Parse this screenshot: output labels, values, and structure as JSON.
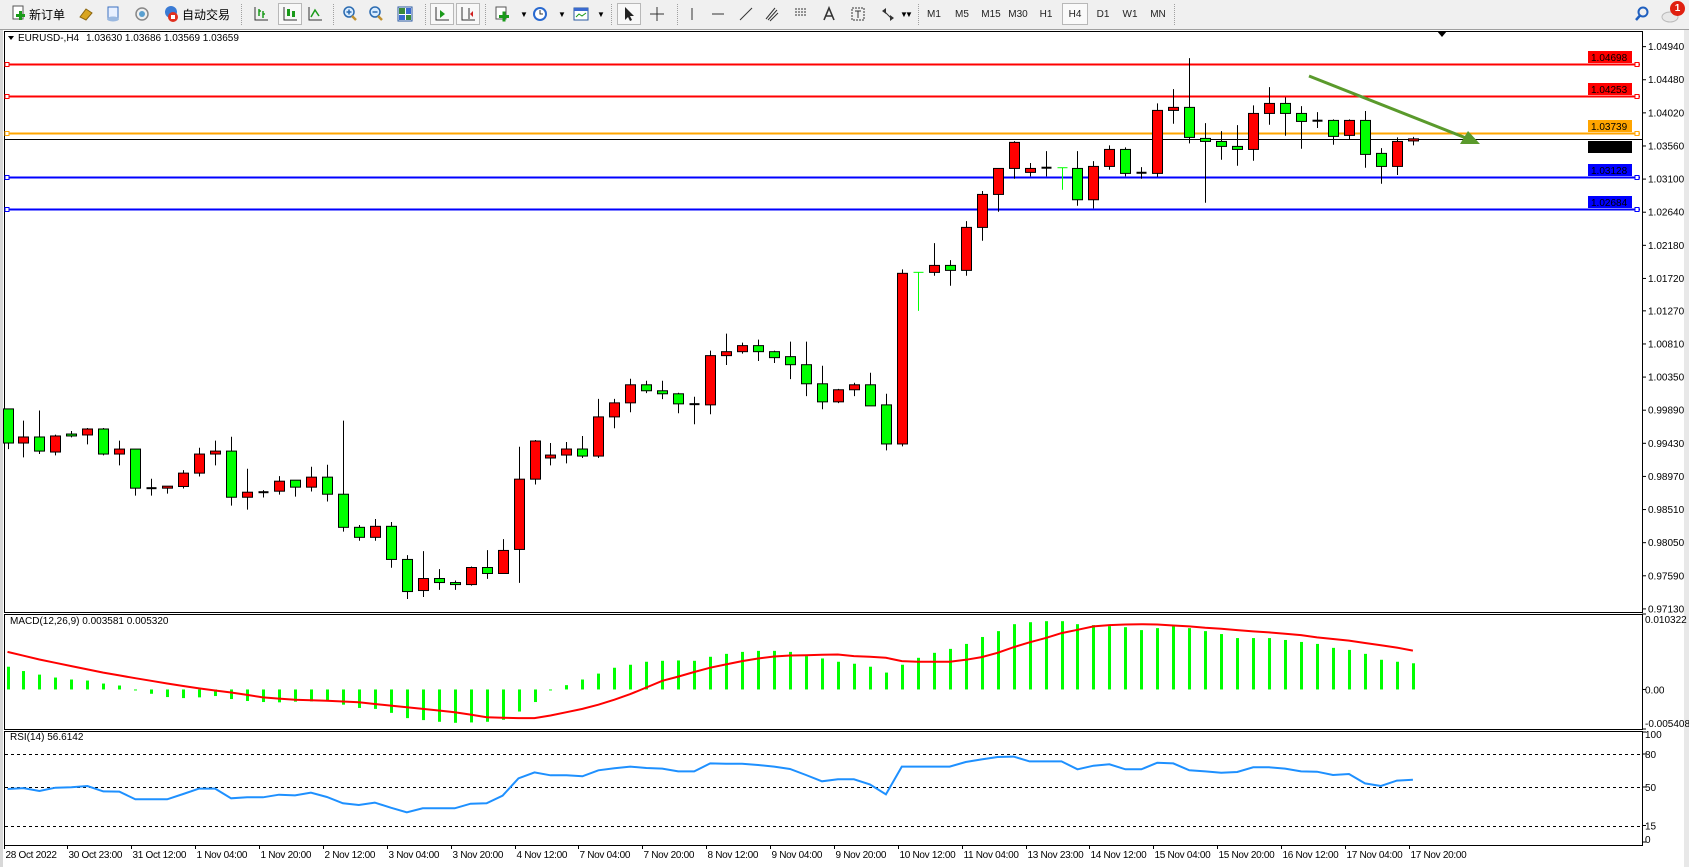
{
  "toolbar": {
    "new_order_label": "新订单",
    "auto_trading_label": "自动交易",
    "buttons": [
      {
        "name": "gold-bars-icon"
      },
      {
        "name": "document-icon"
      },
      {
        "name": "signal-icon"
      },
      {
        "name": "bar-chart-icon"
      },
      {
        "name": "candlestick-chart-icon",
        "pressed": true
      },
      {
        "name": "line-chart-icon"
      },
      {
        "name": "zoom-in-icon"
      },
      {
        "name": "zoom-out-icon"
      },
      {
        "name": "tile-windows-icon"
      },
      {
        "name": "auto-scroll-icon",
        "pressed": true
      },
      {
        "name": "chart-shift-icon",
        "pressed": true
      },
      {
        "name": "indicators-icon"
      },
      {
        "name": "periods-clock-icon"
      },
      {
        "name": "templates-icon"
      },
      {
        "name": "cursor-icon",
        "pressed": true
      },
      {
        "name": "crosshair-icon"
      },
      {
        "name": "vertical-line-icon"
      },
      {
        "name": "horizontal-line-icon"
      },
      {
        "name": "trendline-icon"
      },
      {
        "name": "fibonacci-channel-icon"
      },
      {
        "name": "fibonacci-fan-icon"
      },
      {
        "name": "text-icon"
      },
      {
        "name": "text-label-icon"
      },
      {
        "name": "arrows-icon"
      }
    ],
    "timeframes": [
      "M1",
      "M5",
      "M15",
      "M30",
      "H1",
      "H4",
      "D1",
      "W1",
      "MN"
    ],
    "active_timeframe": "H4",
    "notification_count": "1"
  },
  "chart": {
    "symbol_title": "EURUSD-,H4",
    "ohlc_readout": "1.03630 1.03686 1.03569 1.03659",
    "macd_label": "MACD(12,26,9) 0.003581 0.005320",
    "rsi_label": "RSI(14) 56.6142",
    "up_color": "#ff0000",
    "down_color": "#00ff00",
    "trend_arrow_color": "#5a9a2c"
  },
  "chart_data": {
    "type": "candlestick",
    "price_axis_ticks": [
      "1.04940",
      "1.04480",
      "1.04020",
      "1.03560",
      "1.03100",
      "1.02640",
      "1.02180",
      "1.01720",
      "1.01270",
      "1.00810",
      "1.00350",
      "0.99890",
      "0.99430",
      "0.98970",
      "0.98510",
      "0.98050",
      "0.97590",
      "0.97130"
    ],
    "ylim": [
      0.97087,
      1.05157
    ],
    "time_labels": [
      "28 Oct 2022",
      "30 Oct 23:00",
      "31 Oct 12:00",
      "1 Nov 04:00",
      "1 Nov 20:00",
      "2 Nov 12:00",
      "3 Nov 04:00",
      "3 Nov 20:00",
      "4 Nov 12:00",
      "7 Nov 04:00",
      "7 Nov 20:00",
      "8 Nov 12:00",
      "9 Nov 04:00",
      "9 Nov 20:00",
      "10 Nov 12:00",
      "11 Nov 04:00",
      "13 Nov 23:00",
      "14 Nov 12:00",
      "15 Nov 04:00",
      "15 Nov 20:00",
      "16 Nov 12:00",
      "17 Nov 04:00",
      "17 Nov 20:00"
    ],
    "ohlc": [
      [
        0.99908,
        0.99908,
        0.9935,
        0.99434
      ],
      [
        0.99434,
        0.99745,
        0.99234,
        0.99518
      ],
      [
        0.99518,
        0.99885,
        0.99281,
        0.99322
      ],
      [
        0.99309,
        0.9955,
        0.99262,
        0.99532
      ],
      [
        0.99559,
        0.99601,
        0.99513,
        0.99532
      ],
      [
        0.99546,
        0.99643,
        0.99415,
        0.99629
      ],
      [
        0.99629,
        0.99643,
        0.99262,
        0.99281
      ],
      [
        0.99281,
        0.99467,
        0.99123,
        0.9935
      ],
      [
        0.9935,
        0.9935,
        0.98704,
        0.98807
      ],
      [
        0.98807,
        0.98937,
        0.98704,
        0.98807
      ],
      [
        0.98807,
        0.98835,
        0.98732,
        0.98835
      ],
      [
        0.9883,
        0.99058,
        0.98802,
        0.99016
      ],
      [
        0.99016,
        0.99369,
        0.98969,
        0.99281
      ],
      [
        0.99281,
        0.99467,
        0.99123,
        0.99322
      ],
      [
        0.99322,
        0.99522,
        0.98565,
        0.98681
      ],
      [
        0.98681,
        0.99076,
        0.98509,
        0.98751
      ],
      [
        0.98751,
        0.98779,
        0.98677,
        0.98751
      ],
      [
        0.98765,
        0.98974,
        0.98718,
        0.98904
      ],
      [
        0.98918,
        0.98918,
        0.9869,
        0.98821
      ],
      [
        0.98821,
        0.99104,
        0.9876,
        0.9896
      ],
      [
        0.9896,
        0.99132,
        0.98621,
        0.98723
      ],
      [
        0.98723,
        0.99745,
        0.98203,
        0.98263
      ],
      [
        0.98263,
        0.98296,
        0.98077,
        0.98124
      ],
      [
        0.98124,
        0.98379,
        0.98077,
        0.98277
      ],
      [
        0.98277,
        0.98337,
        0.97701,
        0.97817
      ],
      [
        0.97817,
        0.97877,
        0.97268,
        0.97371
      ],
      [
        0.97385,
        0.97933,
        0.97296,
        0.97552
      ],
      [
        0.97552,
        0.97682,
        0.97394,
        0.97496
      ],
      [
        0.97496,
        0.97524,
        0.97394,
        0.97468
      ],
      [
        0.97468,
        0.97719,
        0.97454,
        0.97705
      ],
      [
        0.97705,
        0.97947,
        0.97547,
        0.97622
      ],
      [
        0.97622,
        0.981,
        0.97622,
        0.97942
      ],
      [
        0.97956,
        0.99383,
        0.97492,
        0.98932
      ],
      [
        0.98932,
        0.99476,
        0.98858,
        0.99462
      ],
      [
        0.99226,
        0.99435,
        0.99123,
        0.99267
      ],
      [
        0.99267,
        0.99449,
        0.99151,
        0.99351
      ],
      [
        0.99351,
        0.99532,
        0.99226,
        0.99253
      ],
      [
        0.99253,
        1.00048,
        0.99226,
        0.99797
      ],
      [
        0.99797,
        1.00048,
        0.99639,
        0.99992
      ],
      [
        0.99992,
        1.00327,
        0.99862,
        1.00243
      ],
      [
        1.00243,
        1.00299,
        1.00127,
        1.0016
      ],
      [
        1.0016,
        1.00299,
        1.00043,
        1.00118
      ],
      [
        1.00118,
        1.00132,
        0.99848,
        0.99978
      ],
      [
        0.99974,
        1.00076,
        0.99695,
        0.99974
      ],
      [
        0.99964,
        1.00717,
        0.99834,
        1.00648
      ],
      [
        1.00648,
        1.00954,
        1.00517,
        1.00703
      ],
      [
        1.00703,
        1.00829,
        1.00675,
        1.00787
      ],
      [
        1.00787,
        1.00871,
        1.00573,
        1.00703
      ],
      [
        1.00703,
        1.00717,
        1.00545,
        1.0062
      ],
      [
        1.00634,
        1.00843,
        1.00322,
        1.00522
      ],
      [
        1.00522,
        1.00843,
        1.00085,
        1.00257
      ],
      [
        1.00257,
        1.00508,
        0.99904,
        1.00006
      ],
      [
        1.00006,
        1.00187,
        0.99988,
        1.00174
      ],
      [
        1.00174,
        1.00271,
        1.00085,
        1.00243
      ],
      [
        1.00243,
        1.00411,
        0.9995,
        0.9995
      ],
      [
        0.99964,
        1.00118,
        0.99332,
        0.99421
      ],
      [
        0.99421,
        1.01846,
        0.99388,
        1.01791
      ],
      [
        1.01805,
        1.01805,
        1.0127,
        1.01805
      ],
      [
        1.01804,
        1.02211,
        1.01758,
        1.01901
      ],
      [
        1.01901,
        1.01975,
        1.01619,
        1.01832
      ],
      [
        1.01832,
        1.02517,
        1.01758,
        1.02429
      ],
      [
        1.02429,
        1.02934,
        1.02244,
        1.02887
      ],
      [
        1.02887,
        1.03248,
        1.02647,
        1.03248
      ],
      [
        1.03248,
        1.03628,
        1.03105,
        1.0361
      ],
      [
        1.03193,
        1.03323,
        1.03137,
        1.03248
      ],
      [
        1.03258,
        1.03489,
        1.03137,
        1.03258
      ],
      [
        1.03258,
        1.03258,
        1.02952,
        1.03258
      ],
      [
        1.03248,
        1.03489,
        1.0273,
        1.02813
      ],
      [
        1.02813,
        1.0335,
        1.02693,
        1.03276
      ],
      [
        1.03276,
        1.03568,
        1.0323,
        1.03512
      ],
      [
        1.03512,
        1.0354,
        1.03137,
        1.03179
      ],
      [
        1.03188,
        1.03267,
        1.03105,
        1.03188
      ],
      [
        1.03179,
        1.04151,
        1.03133,
        1.04054
      ],
      [
        1.04054,
        1.0435,
        1.03869,
        1.04096
      ],
      [
        1.04096,
        1.04781,
        1.03596,
        1.03679
      ],
      [
        1.03665,
        1.03878,
        1.02772,
        1.03623
      ],
      [
        1.03623,
        1.03767,
        1.03369,
        1.03554
      ],
      [
        1.03554,
        1.0385,
        1.03285,
        1.03512
      ],
      [
        1.03512,
        1.04124,
        1.03355,
        1.04012
      ],
      [
        1.04012,
        1.04378,
        1.03855,
        1.04151
      ],
      [
        1.04151,
        1.04235,
        1.03702,
        1.04012
      ],
      [
        1.04012,
        1.04114,
        1.03522,
        1.03901
      ],
      [
        1.03911,
        1.04031,
        1.03809,
        1.03911
      ],
      [
        1.03915,
        1.03929,
        1.03577,
        1.03693
      ],
      [
        1.03707,
        1.03929,
        1.03651,
        1.03915
      ],
      [
        1.03915,
        1.04045,
        1.03258,
        1.03443
      ],
      [
        1.03457,
        1.03531,
        1.03035,
        1.03276
      ],
      [
        1.03276,
        1.03679,
        1.03156,
        1.03623
      ],
      [
        1.0363,
        1.03686,
        1.03569,
        1.03659
      ]
    ],
    "horizontal_lines": [
      {
        "price": "1.04698",
        "color": "#ff0000"
      },
      {
        "price": "1.04253",
        "color": "#ff0000"
      },
      {
        "price": "1.03739",
        "color": "#ffa500"
      },
      {
        "price": "1.03128",
        "color": "#0000ff"
      },
      {
        "price": "1.02684",
        "color": "#0000ff"
      }
    ],
    "current_price": "1.03659",
    "macd": {
      "ylim": [
        -0.005408,
        0.010322
      ],
      "axis_ticks": [
        "0.010322",
        "0.00",
        "-0.005408"
      ],
      "histogram_color": "#00ff00",
      "signal_color": "#ff0000",
      "main": [
        0.00311,
        0.00252,
        0.00203,
        0.00163,
        0.00136,
        0.00122,
        0.00081,
        0.00054,
        -9e-05,
        -0.00059,
        -0.00104,
        -0.00118,
        -0.00108,
        -0.0009,
        -0.00131,
        -0.00158,
        -0.00172,
        -0.00176,
        -0.00167,
        -0.00163,
        -0.00163,
        -0.00208,
        -0.00253,
        -0.00266,
        -0.0032,
        -0.00392,
        -0.00419,
        -0.00442,
        -0.00456,
        -0.00451,
        -0.00442,
        -0.00415,
        -0.00302,
        -0.00172,
        -9e-05,
        0.00059,
        0.00136,
        0.00217,
        0.00297,
        0.00338,
        0.00379,
        0.00392,
        0.00397,
        0.00392,
        0.00447,
        0.00487,
        0.00514,
        0.00528,
        0.00528,
        0.00514,
        0.00456,
        0.00424,
        0.00379,
        0.00352,
        0.00311,
        0.00231,
        0.00338,
        0.00433,
        0.00501,
        0.00555,
        0.00623,
        0.00718,
        0.00798,
        0.00893,
        0.0092,
        0.00934,
        0.00934,
        0.00893,
        0.0088,
        0.00866,
        0.00852,
        0.00812,
        0.00839,
        0.00866,
        0.00839,
        0.00798,
        0.00758,
        0.00703,
        0.00703,
        0.00703,
        0.00677,
        0.0065,
        0.00623,
        0.00569,
        0.00541,
        0.00487,
        0.00406,
        0.00379,
        0.003581
      ],
      "signal": [
        0.00514,
        0.00462,
        0.0041,
        0.00365,
        0.0032,
        0.00275,
        0.0023,
        0.00192,
        0.00154,
        0.00118,
        0.00081,
        0.00047,
        0.00014,
        -0.00014,
        -0.00041,
        -0.00075,
        -0.00108,
        -0.00125,
        -0.0014,
        -0.00147,
        -0.00154,
        -0.00165,
        -0.00176,
        -0.00199,
        -0.00221,
        -0.00244,
        -0.00266,
        -0.00288,
        -0.00311,
        -0.00344,
        -0.00379,
        -0.00386,
        -0.00392,
        -0.00392,
        -0.00356,
        -0.00311,
        -0.00266,
        -0.00208,
        -0.0014,
        -0.00063,
        0.00027,
        0.00118,
        0.00176,
        0.00239,
        0.00297,
        0.00343,
        0.00388,
        0.00424,
        0.00451,
        0.00465,
        0.00469,
        0.00474,
        0.00478,
        0.00456,
        0.00447,
        0.00433,
        0.00388,
        0.00379,
        0.00379,
        0.00379,
        0.00406,
        0.00442,
        0.00501,
        0.00578,
        0.00645,
        0.00703,
        0.00771,
        0.00816,
        0.00862,
        0.0088,
        0.00889,
        0.00893,
        0.00889,
        0.00875,
        0.00862,
        0.00843,
        0.0083,
        0.00812,
        0.00794,
        0.0078,
        0.00762,
        0.00744,
        0.00712,
        0.0069,
        0.00668,
        0.00636,
        0.00605,
        0.00573,
        0.00532
      ]
    },
    "rsi": {
      "ylim": [
        0,
        100
      ],
      "axis_ticks": [
        "100",
        "80",
        "50",
        "15",
        "0"
      ],
      "levels": [
        80,
        50,
        15
      ],
      "color": "#1e90ff",
      "values": [
        48.2,
        49,
        46.4,
        49.4,
        49.7,
        50.9,
        46,
        45.8,
        38.8,
        38.8,
        38.8,
        43.6,
        48.5,
        48.5,
        39.7,
        40.6,
        40.6,
        43,
        42.4,
        44.8,
        40.9,
        35.2,
        33.6,
        35.8,
        31.2,
        27,
        30.6,
        30.6,
        30.6,
        34.8,
        35.2,
        42.1,
        57.9,
        63.3,
        60.6,
        60.6,
        59.7,
        65.2,
        67,
        68.5,
        67.3,
        66.7,
        64.2,
        64.2,
        71.5,
        71.2,
        71.2,
        70,
        68.5,
        66.4,
        60.9,
        55.2,
        57,
        57,
        52.4,
        43.3,
        68.5,
        68.5,
        68.5,
        68.5,
        72.7,
        75.1,
        77.3,
        77.6,
        73.3,
        73.3,
        73.3,
        66.1,
        69.4,
        70.6,
        66.1,
        66.1,
        72.1,
        71.5,
        65.2,
        64.2,
        63,
        63.6,
        67.9,
        67.9,
        66.7,
        64.2,
        63.9,
        60.9,
        61.8,
        53.3,
        50.9,
        55.8,
        56.6142
      ]
    }
  }
}
